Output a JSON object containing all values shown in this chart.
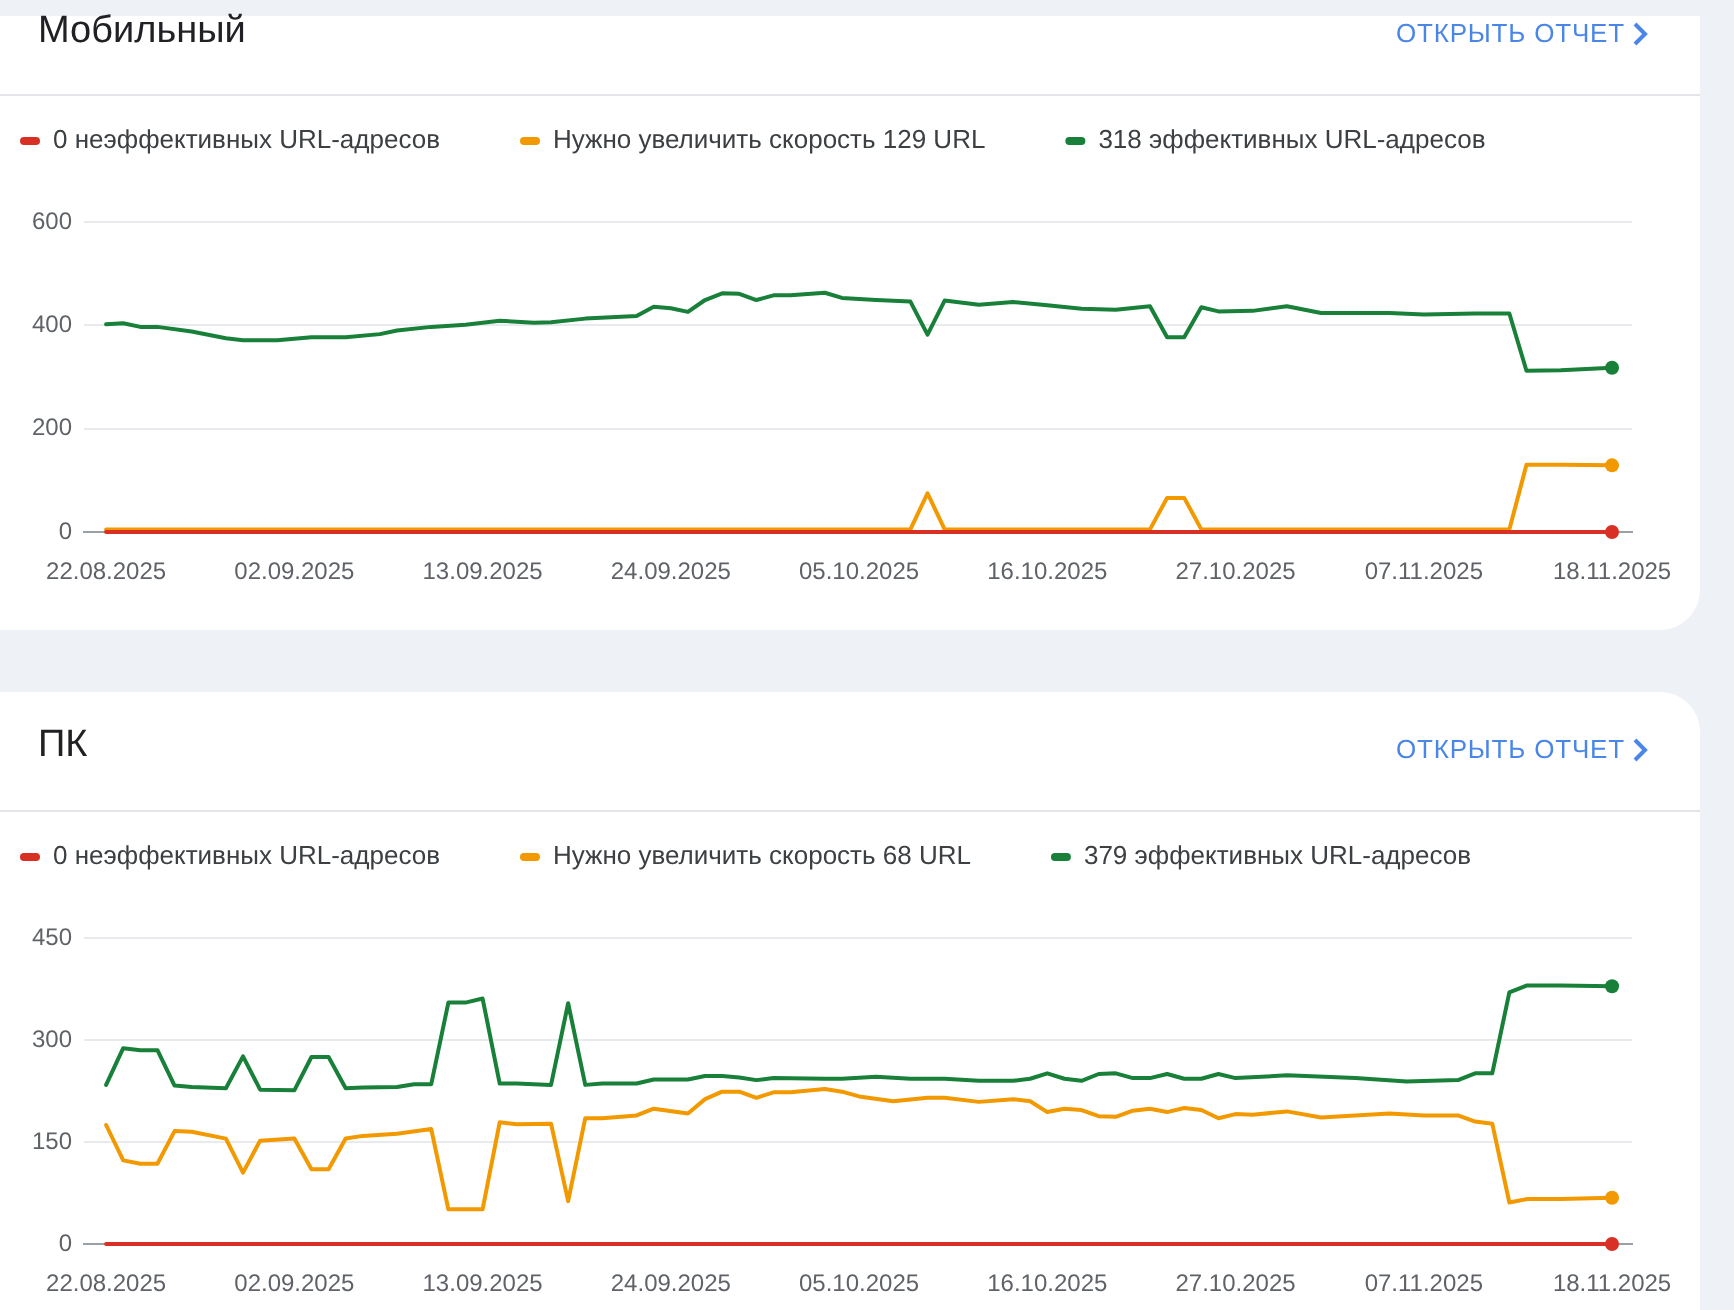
{
  "chart_data": [
    {
      "type": "line",
      "title": "Мобильный",
      "annotations": [
        "ОТКРЫТЬ ОТЧЕТ"
      ],
      "xlim": [
        "2025-08-20T17:00",
        "2025-11-19T04:00"
      ],
      "xticks": [
        {
          "value": "2025-08-22",
          "label": "22.08.2025"
        },
        {
          "value": "2025-09-02",
          "label": "02.09.2025"
        },
        {
          "value": "2025-09-13",
          "label": "13.09.2025"
        },
        {
          "value": "2025-09-24",
          "label": "24.09.2025"
        },
        {
          "value": "2025-10-05",
          "label": "05.10.2025"
        },
        {
          "value": "2025-10-16",
          "label": "16.10.2025"
        },
        {
          "value": "2025-10-27",
          "label": "27.10.2025"
        },
        {
          "value": "2025-11-07",
          "label": "07.11.2025"
        },
        {
          "value": "2025-11-18",
          "label": "18.11.2025"
        }
      ],
      "ylim": [
        0,
        600
      ],
      "yticks": [
        0,
        200,
        400,
        600
      ],
      "grid": "y",
      "legend": "top left",
      "series": [
        {
          "name": "0 неэффективных URL-адресов",
          "color": "#d93025",
          "x": [
            "2025-08-22",
            "2025-11-18"
          ],
          "values": [
            0,
            0
          ]
        },
        {
          "name": "Нужно увеличить скорость 129 URL",
          "color": "#f29900",
          "x": [
            "2025-08-22",
            "2025-10-08",
            "2025-10-09",
            "2025-10-10",
            "2025-10-22",
            "2025-10-23",
            "2025-10-24",
            "2025-10-25",
            "2025-11-12",
            "2025-11-13",
            "2025-11-15",
            "2025-11-18"
          ],
          "values": [
            5,
            5,
            75,
            5,
            5,
            66,
            66,
            5,
            5,
            130,
            130,
            129
          ]
        },
        {
          "name": "318 эффективных URL-адресов",
          "color": "#188038",
          "x": [
            "2025-08-22",
            "2025-08-23",
            "2025-08-24",
            "2025-08-25",
            "2025-08-27",
            "2025-08-29",
            "2025-08-30",
            "2025-09-01",
            "2025-09-03",
            "2025-09-05",
            "2025-09-07",
            "2025-09-08",
            "2025-09-10",
            "2025-09-12",
            "2025-09-14",
            "2025-09-16",
            "2025-09-17",
            "2025-09-19",
            "2025-09-22",
            "2025-09-23",
            "2025-09-24",
            "2025-09-25",
            "2025-09-26",
            "2025-09-27",
            "2025-09-28",
            "2025-09-29",
            "2025-09-30",
            "2025-10-01",
            "2025-10-03",
            "2025-10-04",
            "2025-10-05",
            "2025-10-06",
            "2025-10-08",
            "2025-10-09",
            "2025-10-10",
            "2025-10-12",
            "2025-10-14",
            "2025-10-16",
            "2025-10-18",
            "2025-10-20",
            "2025-10-22",
            "2025-10-23",
            "2025-10-24",
            "2025-10-25",
            "2025-10-26",
            "2025-10-28",
            "2025-10-30",
            "2025-11-01",
            "2025-11-03",
            "2025-11-05",
            "2025-11-07",
            "2025-11-10",
            "2025-11-12",
            "2025-11-13",
            "2025-11-15",
            "2025-11-18"
          ],
          "values": [
            402,
            404,
            397,
            397,
            388,
            375,
            371,
            371,
            377,
            377,
            383,
            390,
            397,
            401,
            409,
            405,
            406,
            413,
            418,
            436,
            433,
            426,
            449,
            462,
            461,
            449,
            458,
            458,
            463,
            453,
            451,
            449,
            446,
            382,
            448,
            440,
            445,
            439,
            432,
            430,
            437,
            377,
            377,
            435,
            427,
            428,
            437,
            424,
            424,
            424,
            421,
            423,
            423,
            312,
            313,
            318
          ]
        }
      ]
    },
    {
      "type": "line",
      "title": "ПК",
      "annotations": [
        "ОТКРЫТЬ ОТЧЕТ"
      ],
      "xlim": [
        "2025-08-20T17:00",
        "2025-11-19T04:00"
      ],
      "xticks": [
        {
          "value": "2025-08-22",
          "label": "22.08.2025"
        },
        {
          "value": "2025-09-02",
          "label": "02.09.2025"
        },
        {
          "value": "2025-09-13",
          "label": "13.09.2025"
        },
        {
          "value": "2025-09-24",
          "label": "24.09.2025"
        },
        {
          "value": "2025-10-05",
          "label": "05.10.2025"
        },
        {
          "value": "2025-10-16",
          "label": "16.10.2025"
        },
        {
          "value": "2025-10-27",
          "label": "27.10.2025"
        },
        {
          "value": "2025-11-07",
          "label": "07.11.2025"
        },
        {
          "value": "2025-11-18",
          "label": "18.11.2025"
        }
      ],
      "ylim": [
        0,
        450
      ],
      "yticks": [
        0,
        150,
        300,
        450
      ],
      "grid": "y",
      "legend": "top left",
      "series": [
        {
          "name": "0 неэффективных URL-адресов",
          "color": "#d93025",
          "x": [
            "2025-08-22",
            "2025-11-18"
          ],
          "values": [
            0,
            0
          ]
        },
        {
          "name": "Нужно увеличить скорость 68 URL",
          "color": "#f29900",
          "x": [
            "2025-08-22",
            "2025-08-23",
            "2025-08-24",
            "2025-08-25",
            "2025-08-26",
            "2025-08-27",
            "2025-08-29",
            "2025-08-30",
            "2025-08-31",
            "2025-09-02",
            "2025-09-03",
            "2025-09-04",
            "2025-09-05",
            "2025-09-06",
            "2025-09-08",
            "2025-09-10",
            "2025-09-11",
            "2025-09-13",
            "2025-09-14",
            "2025-09-15",
            "2025-09-17",
            "2025-09-18",
            "2025-09-19",
            "2025-09-20",
            "2025-09-22",
            "2025-09-23",
            "2025-09-25",
            "2025-09-26",
            "2025-09-27",
            "2025-09-28",
            "2025-09-29",
            "2025-09-30",
            "2025-10-01",
            "2025-10-03",
            "2025-10-04",
            "2025-10-05",
            "2025-10-07",
            "2025-10-09",
            "2025-10-10",
            "2025-10-12",
            "2025-10-14",
            "2025-10-15",
            "2025-10-16",
            "2025-10-17",
            "2025-10-18",
            "2025-10-19",
            "2025-10-20",
            "2025-10-21",
            "2025-10-22",
            "2025-10-23",
            "2025-10-24",
            "2025-10-25",
            "2025-10-26",
            "2025-10-27",
            "2025-10-28",
            "2025-10-30",
            "2025-11-01",
            "2025-11-03",
            "2025-11-05",
            "2025-11-07",
            "2025-11-09",
            "2025-11-10",
            "2025-11-11",
            "2025-11-12",
            "2025-11-13",
            "2025-11-15",
            "2025-11-18"
          ],
          "values": [
            175,
            123,
            118,
            118,
            166,
            165,
            155,
            105,
            152,
            155,
            110,
            110,
            155,
            159,
            162,
            169,
            51,
            51,
            179,
            176,
            177,
            63,
            185,
            185,
            189,
            199,
            192,
            213,
            224,
            224,
            215,
            223,
            223,
            228,
            224,
            217,
            210,
            215,
            215,
            209,
            213,
            210,
            194,
            199,
            197,
            188,
            187,
            196,
            199,
            194,
            200,
            197,
            185,
            191,
            190,
            195,
            186,
            189,
            192,
            189,
            189,
            180,
            177,
            61,
            66,
            66,
            68
          ]
        },
        {
          "name": "379 эффективных URL-адресов",
          "color": "#188038",
          "x": [
            "2025-08-22",
            "2025-08-23",
            "2025-08-24",
            "2025-08-25",
            "2025-08-26",
            "2025-08-27",
            "2025-08-29",
            "2025-08-30",
            "2025-08-31",
            "2025-09-02",
            "2025-09-03",
            "2025-09-04",
            "2025-09-05",
            "2025-09-06",
            "2025-09-08",
            "2025-09-09",
            "2025-09-10",
            "2025-09-11",
            "2025-09-12",
            "2025-09-13",
            "2025-09-14",
            "2025-09-15",
            "2025-09-17",
            "2025-09-18",
            "2025-09-19",
            "2025-09-20",
            "2025-09-22",
            "2025-09-23",
            "2025-09-25",
            "2025-09-26",
            "2025-09-27",
            "2025-09-28",
            "2025-09-29",
            "2025-09-30",
            "2025-10-03",
            "2025-10-04",
            "2025-10-06",
            "2025-10-08",
            "2025-10-10",
            "2025-10-12",
            "2025-10-14",
            "2025-10-15",
            "2025-10-16",
            "2025-10-17",
            "2025-10-18",
            "2025-10-19",
            "2025-10-20",
            "2025-10-21",
            "2025-10-22",
            "2025-10-23",
            "2025-10-24",
            "2025-10-25",
            "2025-10-26",
            "2025-10-27",
            "2025-10-30",
            "2025-11-03",
            "2025-11-06",
            "2025-11-09",
            "2025-11-10",
            "2025-11-11",
            "2025-11-12",
            "2025-11-13",
            "2025-11-15",
            "2025-11-18"
          ],
          "values": [
            234,
            288,
            285,
            285,
            233,
            231,
            229,
            276,
            227,
            226,
            275,
            275,
            229,
            230,
            231,
            235,
            235,
            355,
            355,
            361,
            236,
            236,
            234,
            354,
            234,
            236,
            236,
            242,
            242,
            247,
            247,
            245,
            241,
            244,
            243,
            243,
            246,
            243,
            243,
            240,
            240,
            243,
            251,
            243,
            240,
            250,
            251,
            244,
            244,
            250,
            243,
            243,
            250,
            244,
            248,
            244,
            239,
            241,
            251,
            251,
            370,
            380,
            380,
            379
          ]
        }
      ]
    }
  ]
}
